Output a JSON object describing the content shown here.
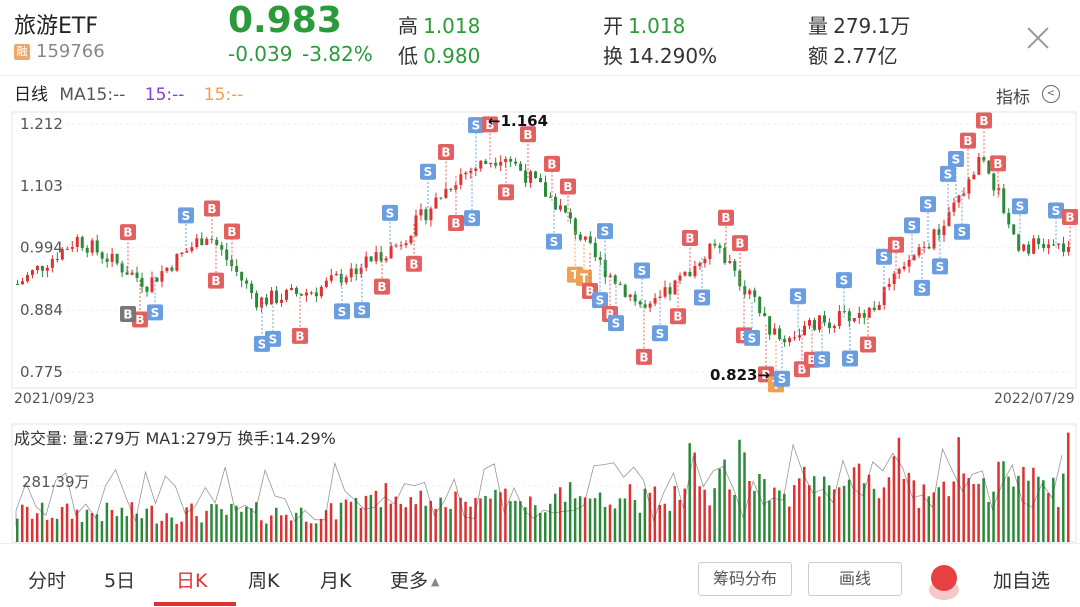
{
  "header": {
    "name": "旅游ETF",
    "badge": "融",
    "code": "159766",
    "price": "0.983",
    "change": "-0.039",
    "change_pct": "-3.82%",
    "high_label": "高",
    "high": "1.018",
    "low_label": "低",
    "low": "0.980",
    "open_label": "开",
    "open": "1.018",
    "turnover_label": "换",
    "turnover": "14.290%",
    "volume_label": "量",
    "volume": "279.1万",
    "amount_label": "额",
    "amount": "2.77亿"
  },
  "ma_row": {
    "period": "日线",
    "ma15": "MA15:--",
    "ma_b": "15:--",
    "ma_c": "15:--",
    "indicator": "指标"
  },
  "price_chart": {
    "y_ticks": [
      "1.212",
      "1.103",
      "0.994",
      "0.884",
      "0.775"
    ],
    "y_values": [
      1.212,
      1.103,
      0.994,
      0.884,
      0.775
    ],
    "start_date": "2021/09/23",
    "end_date": "2022/07/29",
    "max_label": "←1.164",
    "min_label": "0.823→",
    "max_value": 1.164,
    "min_value": 0.823
  },
  "volume_chart": {
    "summary": "成交量: 量:279万 MA1:279万 换手:14.29%",
    "y_tick": "281.39万",
    "y_tick_value": 281.39
  },
  "tabs": [
    {
      "label": "分时"
    },
    {
      "label": "5日"
    },
    {
      "label": "日K"
    },
    {
      "label": "周K"
    },
    {
      "label": "月K"
    },
    {
      "label": "更多"
    }
  ],
  "buttons": {
    "chip": "筹码分布",
    "draw": "画线",
    "add": "加自选"
  },
  "colors": {
    "up": "#e03030",
    "down": "#2a8a3a",
    "buy": "#e26060",
    "sell": "#6a9ee0",
    "t": "#f0a050",
    "ma_b": "#8a3ad0",
    "ma_c": "#f0a050"
  }
}
